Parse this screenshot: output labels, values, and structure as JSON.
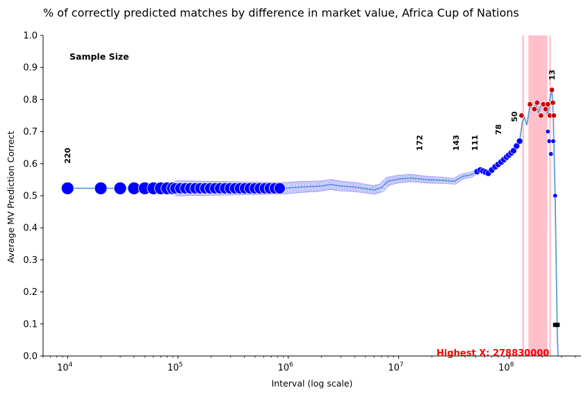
{
  "chart_data": {
    "type": "scatter",
    "title": "% of correctly predicted matches by difference in market value, Africa Cup of Nations",
    "xlabel": "Interval (log scale)",
    "ylabel": "Average MV Prediction Correct",
    "xscale": "log",
    "xlim": [
      6000,
      450000000
    ],
    "ylim": [
      0,
      1
    ],
    "x_ticks": [
      {
        "base": "10",
        "exp": "4"
      },
      {
        "base": "10",
        "exp": "5"
      },
      {
        "base": "10",
        "exp": "6"
      },
      {
        "base": "10",
        "exp": "7"
      },
      {
        "base": "10",
        "exp": "8"
      }
    ],
    "y_ticks": [
      "0.0",
      "0.1",
      "0.2",
      "0.3",
      "0.4",
      "0.5",
      "0.6",
      "0.7",
      "0.8",
      "0.9",
      "1.0"
    ],
    "legend_title": "Sample Size",
    "grid": false,
    "line_color": "#5b9bd5",
    "point_colors": {
      "low": "#0000ff",
      "high": "#cc0000",
      "halo": "#d6d6ff"
    },
    "shade_color": "#ffc0cb",
    "shaded_x_ranges": [
      [
        132000000,
        137000000
      ],
      [
        150000000,
        223000000
      ],
      [
        232000000,
        240000000
      ]
    ],
    "sample_size_labels": [
      {
        "x": 10000,
        "y": 0.6,
        "text": "220"
      },
      {
        "x": 15500000,
        "y": 0.64,
        "text": "172"
      },
      {
        "x": 33000000,
        "y": 0.64,
        "text": "143"
      },
      {
        "x": 49000000,
        "y": 0.64,
        "text": "111"
      },
      {
        "x": 80000000,
        "y": 0.69,
        "text": "78"
      },
      {
        "x": 112000000,
        "y": 0.73,
        "text": "50"
      },
      {
        "x": 245000000,
        "y": 0.86,
        "text": "13"
      }
    ],
    "line_points": [
      [
        10000,
        0.523
      ],
      [
        900000,
        0.523
      ],
      [
        1300000,
        0.527
      ],
      [
        2000000,
        0.53
      ],
      [
        2400000,
        0.535
      ],
      [
        3000000,
        0.53
      ],
      [
        4000000,
        0.527
      ],
      [
        5000000,
        0.522
      ],
      [
        6000000,
        0.518
      ],
      [
        7000000,
        0.525
      ],
      [
        8000000,
        0.545
      ],
      [
        10000000,
        0.552
      ],
      [
        13000000,
        0.555
      ],
      [
        18000000,
        0.55
      ],
      [
        25000000,
        0.548
      ],
      [
        32000000,
        0.545
      ],
      [
        38000000,
        0.56
      ],
      [
        45000000,
        0.565
      ],
      [
        55000000,
        0.58
      ],
      [
        65000000,
        0.57
      ],
      [
        75000000,
        0.59
      ],
      [
        85000000,
        0.605
      ],
      [
        95000000,
        0.62
      ],
      [
        110000000,
        0.64
      ],
      [
        125000000,
        0.67
      ],
      [
        132000000,
        0.73
      ],
      [
        138000000,
        0.745
      ],
      [
        145000000,
        0.72
      ],
      [
        155000000,
        0.78
      ],
      [
        165000000,
        0.77
      ],
      [
        175000000,
        0.785
      ],
      [
        185000000,
        0.76
      ],
      [
        195000000,
        0.78
      ],
      [
        210000000,
        0.79
      ],
      [
        225000000,
        0.75
      ],
      [
        235000000,
        0.8
      ],
      [
        245000000,
        0.835
      ],
      [
        252000000,
        0.75
      ],
      [
        262000000,
        0.5
      ],
      [
        275000000,
        0.05
      ],
      [
        278830000,
        0.0
      ]
    ],
    "big_points": [
      [
        10000,
        0.523
      ],
      [
        20000,
        0.523
      ],
      [
        30000,
        0.523
      ],
      [
        40000,
        0.523
      ],
      [
        50000,
        0.523
      ],
      [
        60000,
        0.523
      ],
      [
        70000,
        0.523
      ],
      [
        80000,
        0.523
      ],
      [
        90000,
        0.523
      ]
    ],
    "high_points": [
      [
        130000000,
        0.75
      ],
      [
        155000000,
        0.785
      ],
      [
        170000000,
        0.77
      ],
      [
        180000000,
        0.79
      ],
      [
        195000000,
        0.75
      ],
      [
        205000000,
        0.785
      ],
      [
        215000000,
        0.77
      ],
      [
        225000000,
        0.785
      ],
      [
        235000000,
        0.75
      ],
      [
        245000000,
        0.83
      ],
      [
        250000000,
        0.79
      ],
      [
        255000000,
        0.75
      ]
    ],
    "last_points": [
      [
        225000000,
        0.7
      ],
      [
        232000000,
        0.67
      ],
      [
        240000000,
        0.63
      ],
      [
        252000000,
        0.67
      ],
      [
        262000000,
        0.5
      ]
    ],
    "bottom_markers": [
      [
        262000000,
        0.097
      ],
      [
        270000000,
        0.097
      ],
      [
        276000000,
        0.097
      ]
    ],
    "highest_x_label": "Highest X: 278830000",
    "highest_x_color": "#ff0000"
  }
}
